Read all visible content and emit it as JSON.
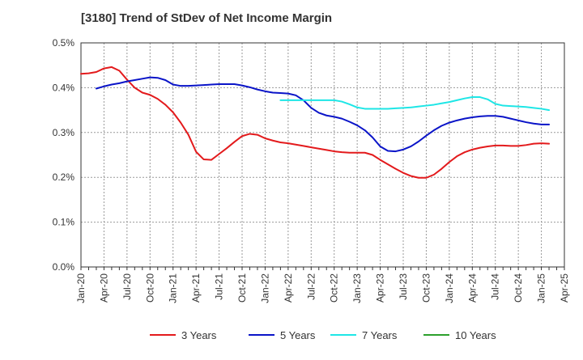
{
  "title": "[3180]  Trend of StDev of Net Income Margin",
  "chart_data": {
    "type": "line",
    "title": "[3180]  Trend of StDev of Net Income Margin",
    "xlabel": "",
    "ylabel": "",
    "x_ticks": [
      "Jan-20",
      "Apr-20",
      "Jul-20",
      "Oct-20",
      "Jan-21",
      "Apr-21",
      "Jul-21",
      "Oct-21",
      "Jan-22",
      "Apr-22",
      "Jul-22",
      "Oct-22",
      "Jan-23",
      "Apr-23",
      "Jul-23",
      "Oct-23",
      "Jan-24",
      "Apr-24",
      "Jul-24",
      "Oct-24",
      "Jan-25",
      "Apr-25"
    ],
    "y_ticks": [
      "0.0%",
      "0.1%",
      "0.2%",
      "0.3%",
      "0.4%",
      "0.5%"
    ],
    "ylim": [
      0,
      0.5
    ],
    "xlim": [
      "2020-01",
      "2025-04"
    ],
    "grid": true,
    "legend_position": "bottom",
    "series": [
      {
        "name": "3 Years",
        "color": "#e31a1c",
        "points": [
          [
            "2020-01",
            0.431
          ],
          [
            "2020-02",
            0.432
          ],
          [
            "2020-03",
            0.435
          ],
          [
            "2020-04",
            0.443
          ],
          [
            "2020-05",
            0.446
          ],
          [
            "2020-06",
            0.438
          ],
          [
            "2020-07",
            0.418
          ],
          [
            "2020-08",
            0.4
          ],
          [
            "2020-09",
            0.389
          ],
          [
            "2020-10",
            0.384
          ],
          [
            "2020-11",
            0.375
          ],
          [
            "2020-12",
            0.362
          ],
          [
            "2021-01",
            0.345
          ],
          [
            "2021-02",
            0.322
          ],
          [
            "2021-03",
            0.295
          ],
          [
            "2021-04",
            0.257
          ],
          [
            "2021-05",
            0.24
          ],
          [
            "2021-06",
            0.239
          ],
          [
            "2021-07",
            0.252
          ],
          [
            "2021-08",
            0.265
          ],
          [
            "2021-09",
            0.279
          ],
          [
            "2021-10",
            0.292
          ],
          [
            "2021-11",
            0.297
          ],
          [
            "2021-12",
            0.295
          ],
          [
            "2022-01",
            0.287
          ],
          [
            "2022-02",
            0.282
          ],
          [
            "2022-03",
            0.278
          ],
          [
            "2022-04",
            0.276
          ],
          [
            "2022-05",
            0.273
          ],
          [
            "2022-06",
            0.27
          ],
          [
            "2022-07",
            0.267
          ],
          [
            "2022-08",
            0.264
          ],
          [
            "2022-09",
            0.261
          ],
          [
            "2022-10",
            0.258
          ],
          [
            "2022-11",
            0.256
          ],
          [
            "2022-12",
            0.255
          ],
          [
            "2023-01",
            0.255
          ],
          [
            "2023-02",
            0.255
          ],
          [
            "2023-03",
            0.25
          ],
          [
            "2023-04",
            0.239
          ],
          [
            "2023-05",
            0.229
          ],
          [
            "2023-06",
            0.219
          ],
          [
            "2023-07",
            0.21
          ],
          [
            "2023-08",
            0.203
          ],
          [
            "2023-09",
            0.199
          ],
          [
            "2023-10",
            0.199
          ],
          [
            "2023-11",
            0.206
          ],
          [
            "2023-12",
            0.219
          ],
          [
            "2024-01",
            0.234
          ],
          [
            "2024-02",
            0.247
          ],
          [
            "2024-03",
            0.256
          ],
          [
            "2024-04",
            0.262
          ],
          [
            "2024-05",
            0.266
          ],
          [
            "2024-06",
            0.269
          ],
          [
            "2024-07",
            0.271
          ],
          [
            "2024-08",
            0.271
          ],
          [
            "2024-09",
            0.27
          ],
          [
            "2024-10",
            0.27
          ],
          [
            "2024-11",
            0.272
          ],
          [
            "2024-12",
            0.275
          ],
          [
            "2025-01",
            0.276
          ],
          [
            "2025-02",
            0.275
          ]
        ]
      },
      {
        "name": "5 Years",
        "color": "#0a14c8",
        "points": [
          [
            "2020-03",
            0.398
          ],
          [
            "2020-04",
            0.403
          ],
          [
            "2020-05",
            0.407
          ],
          [
            "2020-06",
            0.41
          ],
          [
            "2020-07",
            0.414
          ],
          [
            "2020-08",
            0.417
          ],
          [
            "2020-09",
            0.42
          ],
          [
            "2020-10",
            0.423
          ],
          [
            "2020-11",
            0.422
          ],
          [
            "2020-12",
            0.417
          ],
          [
            "2021-01",
            0.407
          ],
          [
            "2021-02",
            0.404
          ],
          [
            "2021-03",
            0.404
          ],
          [
            "2021-04",
            0.405
          ],
          [
            "2021-05",
            0.406
          ],
          [
            "2021-06",
            0.407
          ],
          [
            "2021-07",
            0.408
          ],
          [
            "2021-08",
            0.408
          ],
          [
            "2021-09",
            0.408
          ],
          [
            "2021-10",
            0.405
          ],
          [
            "2021-11",
            0.401
          ],
          [
            "2021-12",
            0.396
          ],
          [
            "2022-01",
            0.392
          ],
          [
            "2022-02",
            0.389
          ],
          [
            "2022-03",
            0.388
          ],
          [
            "2022-04",
            0.387
          ],
          [
            "2022-05",
            0.383
          ],
          [
            "2022-06",
            0.372
          ],
          [
            "2022-07",
            0.355
          ],
          [
            "2022-08",
            0.344
          ],
          [
            "2022-09",
            0.338
          ],
          [
            "2022-10",
            0.335
          ],
          [
            "2022-11",
            0.331
          ],
          [
            "2022-12",
            0.324
          ],
          [
            "2023-01",
            0.316
          ],
          [
            "2023-02",
            0.305
          ],
          [
            "2023-03",
            0.289
          ],
          [
            "2023-04",
            0.269
          ],
          [
            "2023-05",
            0.259
          ],
          [
            "2023-06",
            0.258
          ],
          [
            "2023-07",
            0.262
          ],
          [
            "2023-08",
            0.269
          ],
          [
            "2023-09",
            0.28
          ],
          [
            "2023-10",
            0.293
          ],
          [
            "2023-11",
            0.305
          ],
          [
            "2023-12",
            0.315
          ],
          [
            "2024-01",
            0.322
          ],
          [
            "2024-02",
            0.327
          ],
          [
            "2024-03",
            0.331
          ],
          [
            "2024-04",
            0.334
          ],
          [
            "2024-05",
            0.336
          ],
          [
            "2024-06",
            0.337
          ],
          [
            "2024-07",
            0.337
          ],
          [
            "2024-08",
            0.335
          ],
          [
            "2024-09",
            0.331
          ],
          [
            "2024-10",
            0.327
          ],
          [
            "2024-11",
            0.323
          ],
          [
            "2024-12",
            0.32
          ],
          [
            "2025-01",
            0.318
          ],
          [
            "2025-02",
            0.318
          ]
        ]
      },
      {
        "name": "7 Years",
        "color": "#1ee6e6",
        "points": [
          [
            "2022-03",
            0.372
          ],
          [
            "2022-04",
            0.372
          ],
          [
            "2022-05",
            0.372
          ],
          [
            "2022-06",
            0.372
          ],
          [
            "2022-07",
            0.372
          ],
          [
            "2022-08",
            0.372
          ],
          [
            "2022-09",
            0.372
          ],
          [
            "2022-10",
            0.372
          ],
          [
            "2022-11",
            0.369
          ],
          [
            "2022-12",
            0.363
          ],
          [
            "2023-01",
            0.356
          ],
          [
            "2023-02",
            0.353
          ],
          [
            "2023-03",
            0.353
          ],
          [
            "2023-04",
            0.353
          ],
          [
            "2023-05",
            0.353
          ],
          [
            "2023-06",
            0.354
          ],
          [
            "2023-07",
            0.355
          ],
          [
            "2023-08",
            0.356
          ],
          [
            "2023-09",
            0.358
          ],
          [
            "2023-10",
            0.36
          ],
          [
            "2023-11",
            0.362
          ],
          [
            "2023-12",
            0.365
          ],
          [
            "2024-01",
            0.368
          ],
          [
            "2024-02",
            0.372
          ],
          [
            "2024-03",
            0.376
          ],
          [
            "2024-04",
            0.379
          ],
          [
            "2024-05",
            0.379
          ],
          [
            "2024-06",
            0.374
          ],
          [
            "2024-07",
            0.364
          ],
          [
            "2024-08",
            0.36
          ],
          [
            "2024-09",
            0.359
          ],
          [
            "2024-10",
            0.358
          ],
          [
            "2024-11",
            0.357
          ],
          [
            "2024-12",
            0.355
          ],
          [
            "2025-01",
            0.353
          ],
          [
            "2025-02",
            0.35
          ]
        ]
      },
      {
        "name": "10 Years",
        "color": "#2ca02c",
        "points": []
      }
    ]
  }
}
